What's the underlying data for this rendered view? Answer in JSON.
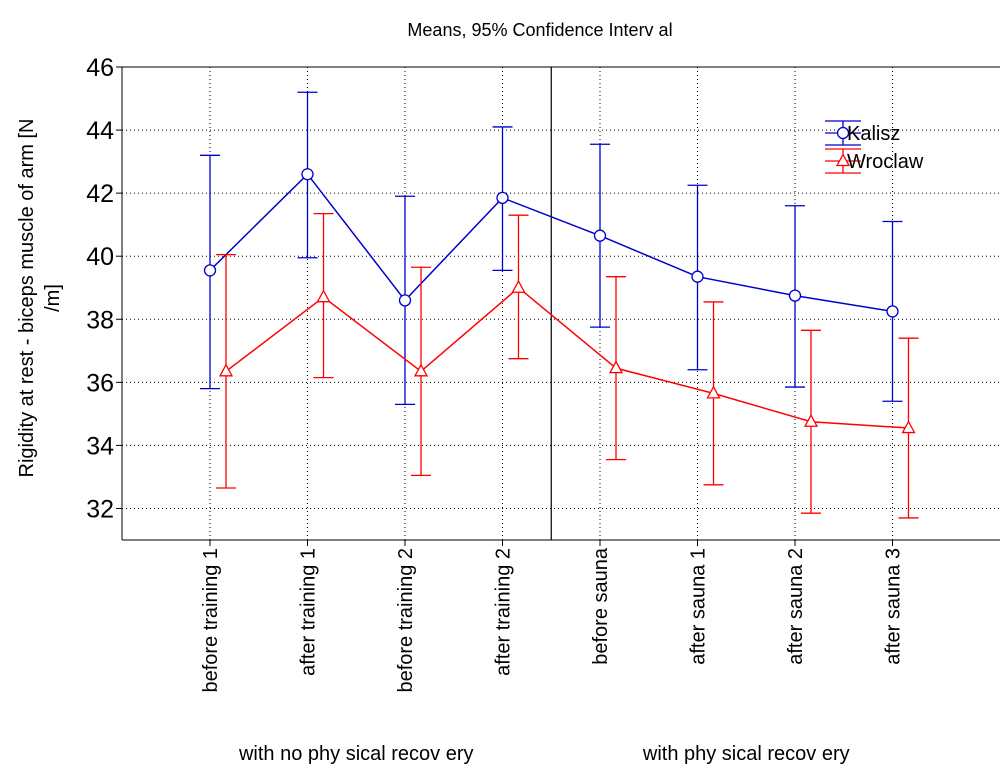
{
  "chart_data": {
    "type": "line",
    "title": "Means, 95% Confidence Interv al",
    "ylabel_lines": [
      "Rigidity at rest - biceps muscle of arm [N",
      "/m]"
    ],
    "xlabel": "",
    "ylim": [
      31,
      46
    ],
    "yticks": [
      32,
      34,
      36,
      38,
      40,
      42,
      44,
      46
    ],
    "grid": true,
    "legend_position": "top-right",
    "categories": [
      "before training 1",
      "after training 1",
      "before training 2",
      "after training 2",
      "before sauna",
      "after sauna 1",
      "after sauna 2",
      "after sauna 3"
    ],
    "groups": [
      {
        "label": "with no phy sical recov ery",
        "categories": 4
      },
      {
        "label": "with phy sical recov ery",
        "categories": 4
      }
    ],
    "divider_after_category": 4,
    "series": [
      {
        "name": "Kalisz",
        "color": "#0000cc",
        "marker": "circle",
        "values": [
          39.55,
          42.6,
          38.6,
          41.85,
          40.65,
          39.35,
          38.75,
          38.25
        ],
        "lower": [
          35.8,
          39.95,
          35.3,
          39.55,
          37.75,
          36.4,
          35.85,
          35.4
        ],
        "upper": [
          43.2,
          45.2,
          41.9,
          44.1,
          43.55,
          42.25,
          41.6,
          41.1
        ]
      },
      {
        "name": "Wroclaw",
        "color": "#ff0000",
        "marker": "triangle",
        "values": [
          36.35,
          38.7,
          36.35,
          39.0,
          36.45,
          35.65,
          34.75,
          34.55
        ],
        "lower": [
          32.65,
          36.15,
          33.05,
          36.75,
          33.55,
          32.75,
          31.85,
          31.7
        ],
        "upper": [
          40.05,
          41.35,
          39.65,
          41.3,
          39.35,
          38.55,
          37.65,
          37.4
        ]
      }
    ]
  }
}
